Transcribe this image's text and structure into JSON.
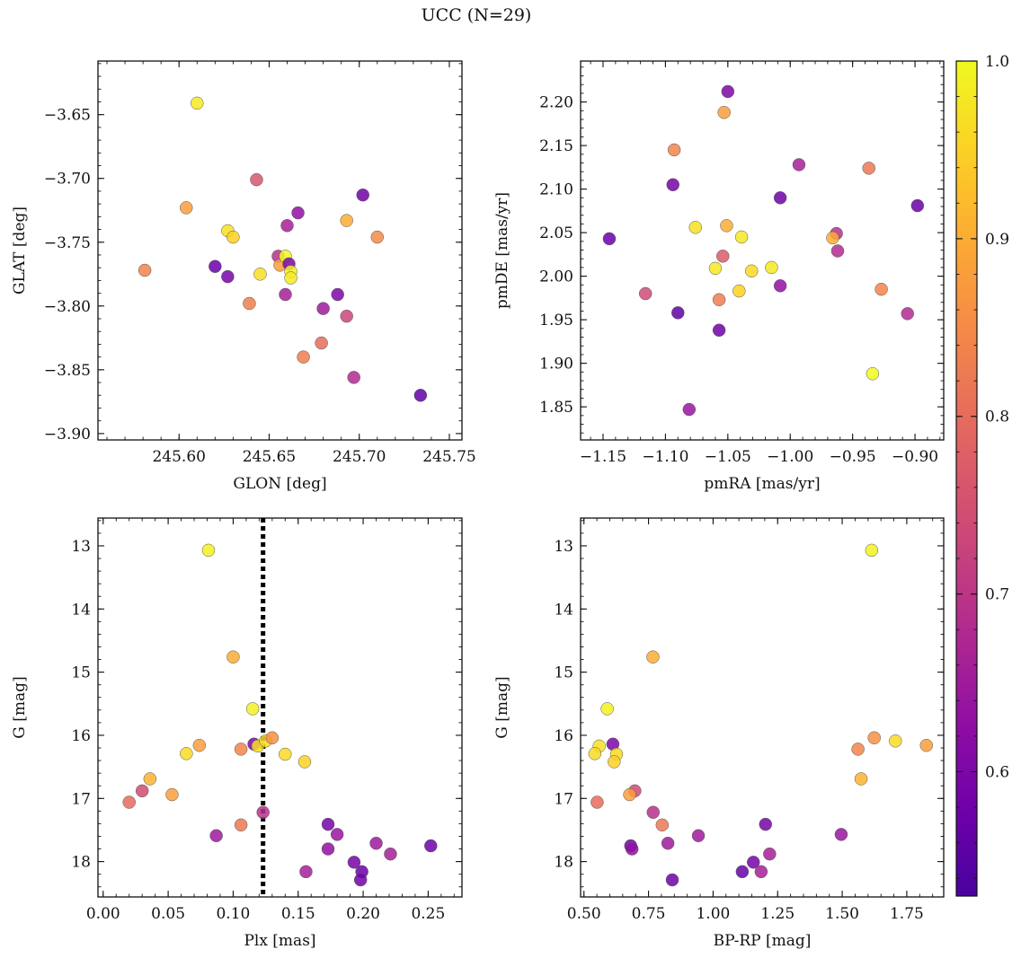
{
  "title": "UCC (N=29)",
  "colorbar": {
    "range": [
      0.53,
      1.0
    ],
    "ticks": [
      0.6,
      0.7,
      0.8,
      0.9,
      1.0
    ],
    "colormap": "plasma"
  },
  "chart_data": [
    {
      "type": "scatter",
      "name": "position",
      "xlabel": "GLON [deg]",
      "ylabel": "GLAT [deg]",
      "xlim": [
        245.555,
        245.757
      ],
      "ylim": [
        -3.905,
        -3.608
      ],
      "xticks": [
        245.6,
        245.65,
        245.7,
        245.75
      ],
      "yticks": [
        -3.9,
        -3.85,
        -3.8,
        -3.75,
        -3.7,
        -3.65
      ],
      "points": [
        {
          "x": 245.61,
          "y": -3.641,
          "c": 0.98
        },
        {
          "x": 245.643,
          "y": -3.701,
          "c": 0.76
        },
        {
          "x": 245.604,
          "y": -3.723,
          "c": 0.88
        },
        {
          "x": 245.702,
          "y": -3.713,
          "c": 0.58
        },
        {
          "x": 245.666,
          "y": -3.727,
          "c": 0.63
        },
        {
          "x": 245.66,
          "y": -3.737,
          "c": 0.66
        },
        {
          "x": 245.693,
          "y": -3.733,
          "c": 0.9
        },
        {
          "x": 245.627,
          "y": -3.741,
          "c": 0.97
        },
        {
          "x": 245.63,
          "y": -3.746,
          "c": 0.95
        },
        {
          "x": 245.71,
          "y": -3.746,
          "c": 0.85
        },
        {
          "x": 245.581,
          "y": -3.772,
          "c": 0.84
        },
        {
          "x": 245.62,
          "y": -3.769,
          "c": 0.57
        },
        {
          "x": 245.627,
          "y": -3.777,
          "c": 0.59
        },
        {
          "x": 245.645,
          "y": -3.775,
          "c": 0.97
        },
        {
          "x": 245.655,
          "y": -3.761,
          "c": 0.69
        },
        {
          "x": 245.656,
          "y": -3.768,
          "c": 0.88
        },
        {
          "x": 245.659,
          "y": -3.761,
          "c": 1.0
        },
        {
          "x": 245.661,
          "y": -3.767,
          "c": 0.6
        },
        {
          "x": 245.662,
          "y": -3.773,
          "c": 0.99
        },
        {
          "x": 245.662,
          "y": -3.778,
          "c": 0.98
        },
        {
          "x": 245.659,
          "y": -3.791,
          "c": 0.66
        },
        {
          "x": 245.639,
          "y": -3.798,
          "c": 0.83
        },
        {
          "x": 245.688,
          "y": -3.791,
          "c": 0.6
        },
        {
          "x": 245.68,
          "y": -3.802,
          "c": 0.65
        },
        {
          "x": 245.693,
          "y": -3.808,
          "c": 0.73
        },
        {
          "x": 245.679,
          "y": -3.829,
          "c": 0.8
        },
        {
          "x": 245.669,
          "y": -3.84,
          "c": 0.83
        },
        {
          "x": 245.697,
          "y": -3.856,
          "c": 0.68
        },
        {
          "x": 245.734,
          "y": -3.87,
          "c": 0.56
        }
      ]
    },
    {
      "type": "scatter",
      "name": "proper motion",
      "xlabel": "pmRA [mas/yr]",
      "ylabel": "pmDE [mas/yr]",
      "xlim": [
        -1.168,
        -0.877
      ],
      "ylim": [
        1.812,
        2.247
      ],
      "xticks": [
        -1.15,
        -1.1,
        -1.05,
        -1.0,
        -0.95,
        -0.9
      ],
      "yticks": [
        1.85,
        1.9,
        1.95,
        2.0,
        2.05,
        2.1,
        2.15,
        2.2
      ],
      "points": [
        {
          "x": -1.05,
          "y": 2.212,
          "c": 0.6
        },
        {
          "x": -1.053,
          "y": 2.188,
          "c": 0.88
        },
        {
          "x": -1.093,
          "y": 2.145,
          "c": 0.84
        },
        {
          "x": -0.993,
          "y": 2.128,
          "c": 0.66
        },
        {
          "x": -0.937,
          "y": 2.124,
          "c": 0.82
        },
        {
          "x": -1.094,
          "y": 2.105,
          "c": 0.59
        },
        {
          "x": -1.008,
          "y": 2.09,
          "c": 0.58
        },
        {
          "x": -0.898,
          "y": 2.081,
          "c": 0.57
        },
        {
          "x": -1.076,
          "y": 2.056,
          "c": 0.97
        },
        {
          "x": -1.051,
          "y": 2.058,
          "c": 0.9
        },
        {
          "x": -1.039,
          "y": 2.045,
          "c": 0.98
        },
        {
          "x": -1.145,
          "y": 2.043,
          "c": 0.57
        },
        {
          "x": -0.963,
          "y": 2.049,
          "c": 0.69
        },
        {
          "x": -0.966,
          "y": 2.044,
          "c": 0.9
        },
        {
          "x": -1.054,
          "y": 2.023,
          "c": 0.77
        },
        {
          "x": -0.962,
          "y": 2.029,
          "c": 0.68
        },
        {
          "x": -1.015,
          "y": 2.01,
          "c": 0.98
        },
        {
          "x": -1.06,
          "y": 2.009,
          "c": 0.98
        },
        {
          "x": -1.031,
          "y": 2.006,
          "c": 0.96
        },
        {
          "x": -1.008,
          "y": 1.989,
          "c": 0.63
        },
        {
          "x": -1.041,
          "y": 1.983,
          "c": 0.95
        },
        {
          "x": -0.927,
          "y": 1.985,
          "c": 0.84
        },
        {
          "x": -1.116,
          "y": 1.98,
          "c": 0.74
        },
        {
          "x": -1.057,
          "y": 1.973,
          "c": 0.83
        },
        {
          "x": -1.09,
          "y": 1.958,
          "c": 0.56
        },
        {
          "x": -0.906,
          "y": 1.957,
          "c": 0.68
        },
        {
          "x": -1.057,
          "y": 1.938,
          "c": 0.58
        },
        {
          "x": -0.934,
          "y": 1.888,
          "c": 1.0
        },
        {
          "x": -1.081,
          "y": 1.847,
          "c": 0.64
        }
      ]
    },
    {
      "type": "scatter",
      "name": "parallax vs magnitude",
      "xlabel": "Plx [mas]",
      "ylabel": "G [mag]",
      "xlim": [
        -0.004,
        0.276
      ],
      "ylim": [
        18.56,
        12.56
      ],
      "y_inverted": true,
      "xticks": [
        0.0,
        0.05,
        0.1,
        0.15,
        0.2,
        0.25
      ],
      "yticks": [
        13,
        14,
        15,
        16,
        17,
        18
      ],
      "vline": 0.123,
      "points": [
        {
          "x": 0.081,
          "y": 13.07,
          "c": 0.99
        },
        {
          "x": 0.1,
          "y": 14.76,
          "c": 0.9
        },
        {
          "x": 0.115,
          "y": 15.58,
          "c": 0.99
        },
        {
          "x": 0.074,
          "y": 16.16,
          "c": 0.88
        },
        {
          "x": 0.064,
          "y": 16.29,
          "c": 0.96
        },
        {
          "x": 0.106,
          "y": 16.22,
          "c": 0.84
        },
        {
          "x": 0.116,
          "y": 16.14,
          "c": 0.6
        },
        {
          "x": 0.119,
          "y": 16.17,
          "c": 0.97
        },
        {
          "x": 0.125,
          "y": 16.09,
          "c": 0.96
        },
        {
          "x": 0.13,
          "y": 16.04,
          "c": 0.86
        },
        {
          "x": 0.14,
          "y": 16.3,
          "c": 0.96
        },
        {
          "x": 0.155,
          "y": 16.42,
          "c": 0.95
        },
        {
          "x": 0.036,
          "y": 16.69,
          "c": 0.91
        },
        {
          "x": 0.03,
          "y": 16.88,
          "c": 0.74
        },
        {
          "x": 0.053,
          "y": 16.94,
          "c": 0.88
        },
        {
          "x": 0.02,
          "y": 17.06,
          "c": 0.8
        },
        {
          "x": 0.087,
          "y": 17.59,
          "c": 0.65
        },
        {
          "x": 0.106,
          "y": 17.42,
          "c": 0.82
        },
        {
          "x": 0.123,
          "y": 17.22,
          "c": 0.69
        },
        {
          "x": 0.173,
          "y": 17.41,
          "c": 0.59
        },
        {
          "x": 0.18,
          "y": 17.57,
          "c": 0.64
        },
        {
          "x": 0.173,
          "y": 17.8,
          "c": 0.63
        },
        {
          "x": 0.21,
          "y": 17.71,
          "c": 0.65
        },
        {
          "x": 0.221,
          "y": 17.88,
          "c": 0.66
        },
        {
          "x": 0.252,
          "y": 17.75,
          "c": 0.58
        },
        {
          "x": 0.193,
          "y": 18.01,
          "c": 0.59
        },
        {
          "x": 0.156,
          "y": 18.16,
          "c": 0.66
        },
        {
          "x": 0.199,
          "y": 18.16,
          "c": 0.57
        },
        {
          "x": 0.198,
          "y": 18.29,
          "c": 0.58
        }
      ]
    },
    {
      "type": "scatter",
      "name": "colour-magnitude diagram",
      "xlabel": "BP-RP [mag]",
      "ylabel": "G [mag]",
      "xlim": [
        0.487,
        1.893
      ],
      "ylim": [
        18.56,
        12.56
      ],
      "y_inverted": true,
      "xticks": [
        0.5,
        0.75,
        1.0,
        1.25,
        1.5,
        1.75
      ],
      "yticks": [
        13,
        14,
        15,
        16,
        17,
        18
      ],
      "points": [
        {
          "x": 1.614,
          "y": 13.07,
          "c": 0.99
        },
        {
          "x": 0.767,
          "y": 14.76,
          "c": 0.9
        },
        {
          "x": 0.59,
          "y": 15.58,
          "c": 0.99
        },
        {
          "x": 0.559,
          "y": 16.17,
          "c": 0.97
        },
        {
          "x": 0.612,
          "y": 16.14,
          "c": 0.6
        },
        {
          "x": 0.542,
          "y": 16.29,
          "c": 0.96
        },
        {
          "x": 0.626,
          "y": 16.3,
          "c": 0.96
        },
        {
          "x": 0.617,
          "y": 16.42,
          "c": 0.95
        },
        {
          "x": 1.561,
          "y": 16.22,
          "c": 0.84
        },
        {
          "x": 1.624,
          "y": 16.04,
          "c": 0.86
        },
        {
          "x": 1.706,
          "y": 16.09,
          "c": 0.96
        },
        {
          "x": 1.826,
          "y": 16.16,
          "c": 0.88
        },
        {
          "x": 1.573,
          "y": 16.69,
          "c": 0.91
        },
        {
          "x": 0.697,
          "y": 16.88,
          "c": 0.74
        },
        {
          "x": 0.677,
          "y": 16.94,
          "c": 0.88
        },
        {
          "x": 0.551,
          "y": 17.06,
          "c": 0.8
        },
        {
          "x": 0.768,
          "y": 17.22,
          "c": 0.69
        },
        {
          "x": 0.803,
          "y": 17.42,
          "c": 0.82
        },
        {
          "x": 1.203,
          "y": 17.41,
          "c": 0.59
        },
        {
          "x": 0.943,
          "y": 17.59,
          "c": 0.65
        },
        {
          "x": 1.496,
          "y": 17.57,
          "c": 0.64
        },
        {
          "x": 0.825,
          "y": 17.71,
          "c": 0.65
        },
        {
          "x": 0.681,
          "y": 17.75,
          "c": 0.58
        },
        {
          "x": 0.686,
          "y": 17.8,
          "c": 0.63
        },
        {
          "x": 1.219,
          "y": 17.88,
          "c": 0.66
        },
        {
          "x": 1.156,
          "y": 18.01,
          "c": 0.59
        },
        {
          "x": 1.113,
          "y": 18.16,
          "c": 0.57
        },
        {
          "x": 1.186,
          "y": 18.16,
          "c": 0.66
        },
        {
          "x": 0.842,
          "y": 18.29,
          "c": 0.58
        }
      ]
    }
  ]
}
